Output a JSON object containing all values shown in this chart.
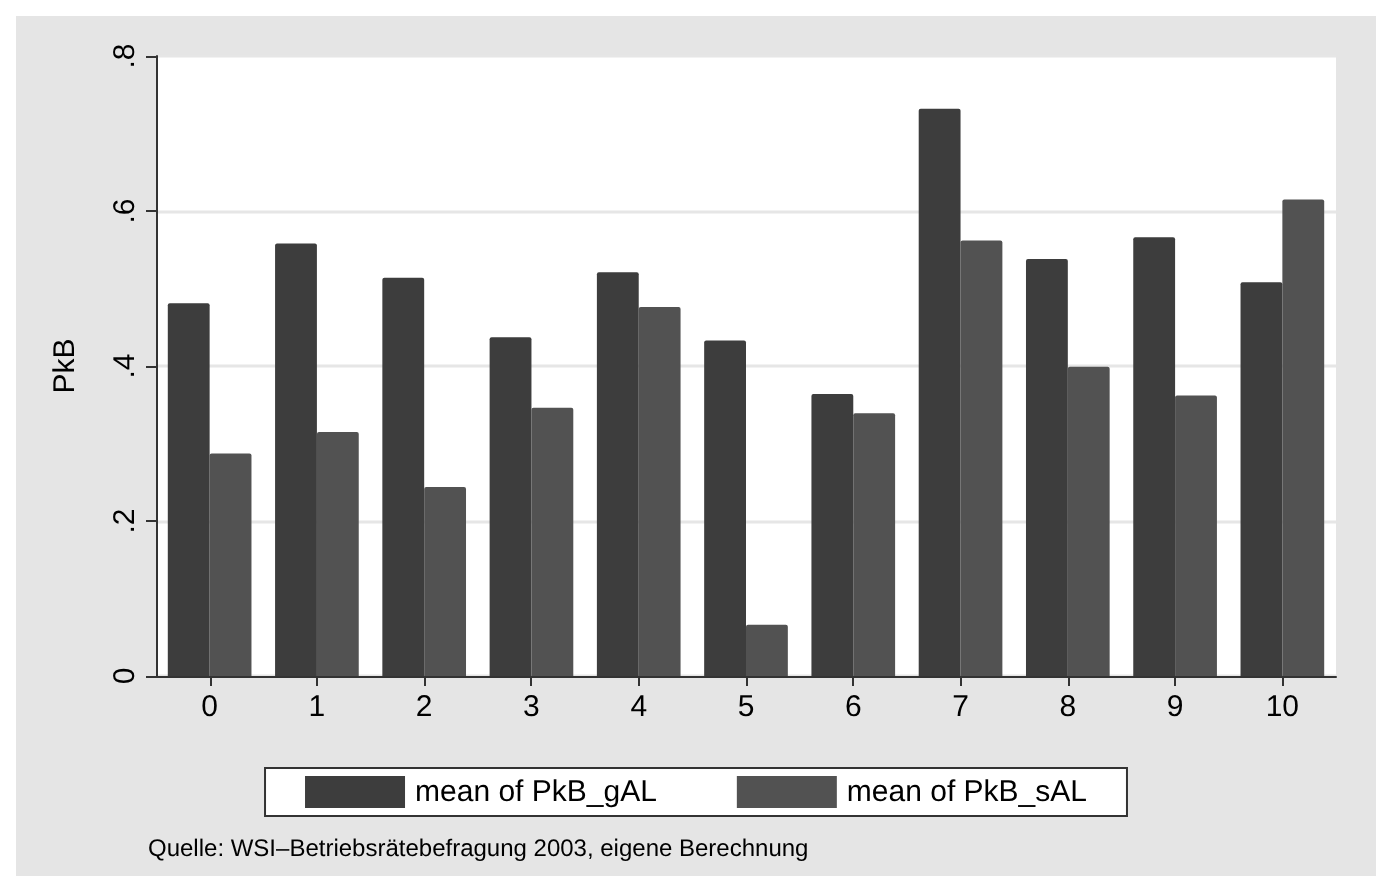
{
  "chart_data": {
    "type": "bar",
    "ylabel": "PkB",
    "categories": [
      "0",
      "1",
      "2",
      "3",
      "4",
      "5",
      "6",
      "7",
      "8",
      "9",
      "10"
    ],
    "series": [
      {
        "name": "mean of PkB_gAL",
        "color": "#3d3d3d",
        "values": [
          0.481,
          0.558,
          0.514,
          0.437,
          0.521,
          0.433,
          0.364,
          0.732,
          0.538,
          0.566,
          0.508
        ]
      },
      {
        "name": "mean of PkB_sAL",
        "color": "#525252",
        "values": [
          0.287,
          0.315,
          0.244,
          0.346,
          0.476,
          0.066,
          0.339,
          0.562,
          0.399,
          0.362,
          0.615
        ]
      }
    ],
    "ylim": [
      0,
      0.8
    ],
    "yticks": [
      0,
      {
        "value": 0.2,
        "label": ".2"
      },
      {
        "value": 0.4,
        "label": ".4"
      },
      {
        "value": 0.6,
        "label": ".6"
      },
      {
        "value": 0.8,
        "label": ".8"
      }
    ],
    "grid": "y",
    "legend": "bottom",
    "annotations": [
      "Quelle: WSI–Betriebsrätebefragung 2003, eigene Berechnung"
    ]
  }
}
